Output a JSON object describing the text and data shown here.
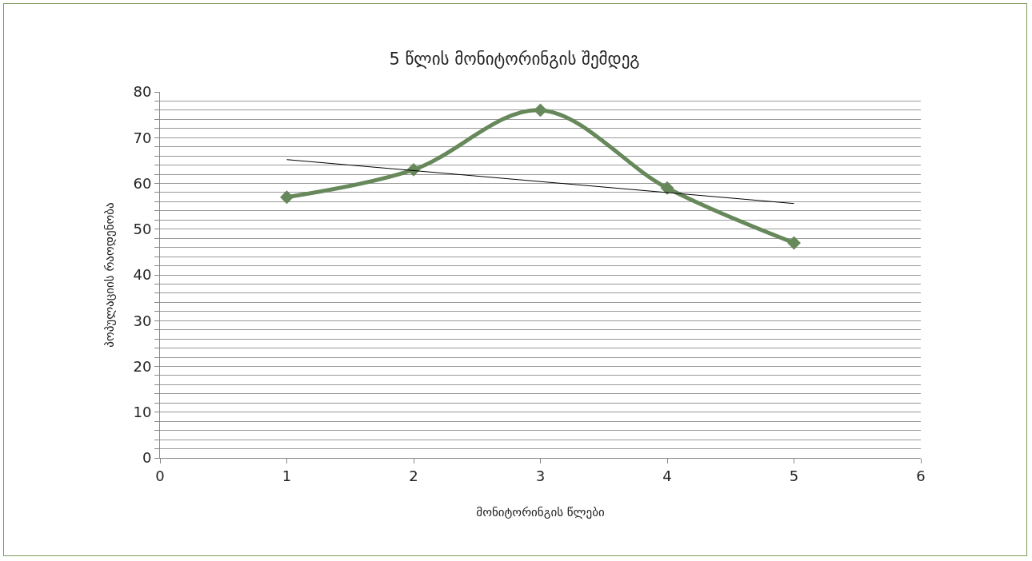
{
  "chart_data": {
    "type": "line",
    "title": "5 წლის მონიტორინგის შემდეგ",
    "xlabel": "მონიტორინგის წლები",
    "ylabel": "პოპულაციის რაოდენობა",
    "x": [
      1,
      2,
      3,
      4,
      5
    ],
    "series": [
      {
        "color": "#66885a",
        "values": [
          57,
          63,
          76,
          59,
          47
        ],
        "marker": "diamond"
      },
      {
        "type": "line",
        "x": [
          1,
          5
        ],
        "color": "#000000",
        "values": [
          65.2,
          55.6
        ],
        "marker": "none"
      }
    ],
    "xlim": [
      0,
      6
    ],
    "xticks": [
      0,
      1,
      2,
      3,
      4,
      5,
      6
    ],
    "ylim": [
      0,
      80
    ],
    "yticks": [
      0,
      {
        "value": 2,
        "label": null
      },
      {
        "value": 4,
        "label": null
      },
      {
        "value": 6,
        "label": null
      },
      {
        "value": 8,
        "label": null
      },
      10,
      {
        "value": 12,
        "label": null
      },
      {
        "value": 14,
        "label": null
      },
      {
        "value": 16,
        "label": null
      },
      {
        "value": 18,
        "label": null
      },
      20,
      {
        "value": 22,
        "label": null
      },
      {
        "value": 24,
        "label": null
      },
      {
        "value": 26,
        "label": null
      },
      {
        "value": 28,
        "label": null
      },
      30,
      {
        "value": 32,
        "label": null
      },
      {
        "value": 34,
        "label": null
      },
      {
        "value": 36,
        "label": null
      },
      {
        "value": 38,
        "label": null
      },
      40,
      {
        "value": 42,
        "label": null
      },
      {
        "value": 44,
        "label": null
      },
      {
        "value": 46,
        "label": null
      },
      {
        "value": 48,
        "label": null
      },
      50,
      {
        "value": 52,
        "label": null
      },
      {
        "value": 54,
        "label": null
      },
      {
        "value": 56,
        "label": null
      },
      {
        "value": 58,
        "label": null
      },
      60,
      {
        "value": 62,
        "label": null
      },
      {
        "value": 64,
        "label": null
      },
      {
        "value": 66,
        "label": null
      },
      {
        "value": 68,
        "label": null
      },
      70,
      {
        "value": 72,
        "label": null
      },
      {
        "value": 74,
        "label": null
      },
      {
        "value": 76,
        "label": null
      },
      {
        "value": 78,
        "label": null
      },
      80
    ],
    "grid": "y"
  }
}
